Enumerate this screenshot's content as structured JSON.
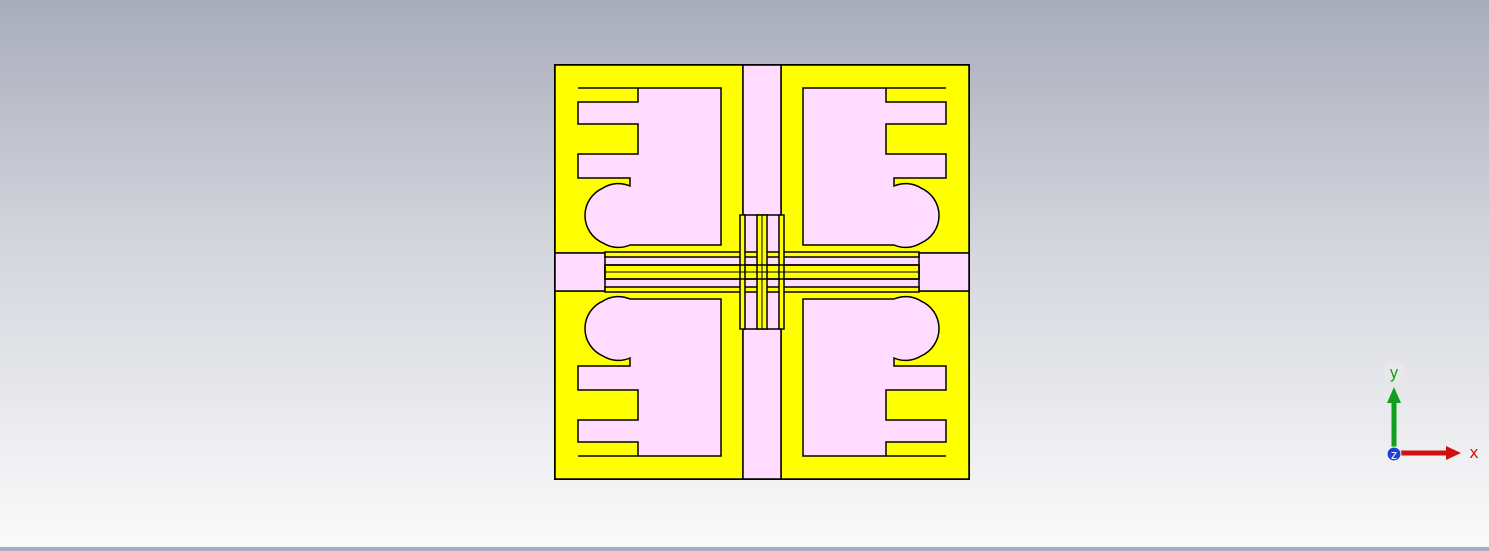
{
  "colors": {
    "metal": "#ffff00",
    "substrate": "#ffdcff",
    "outline": "#000000",
    "axis_x": "#d01010",
    "axis_y": "#10a020",
    "axis_z": "#2040e0"
  },
  "axes": {
    "x_label": "x",
    "y_label": "y",
    "z_label": "z"
  }
}
